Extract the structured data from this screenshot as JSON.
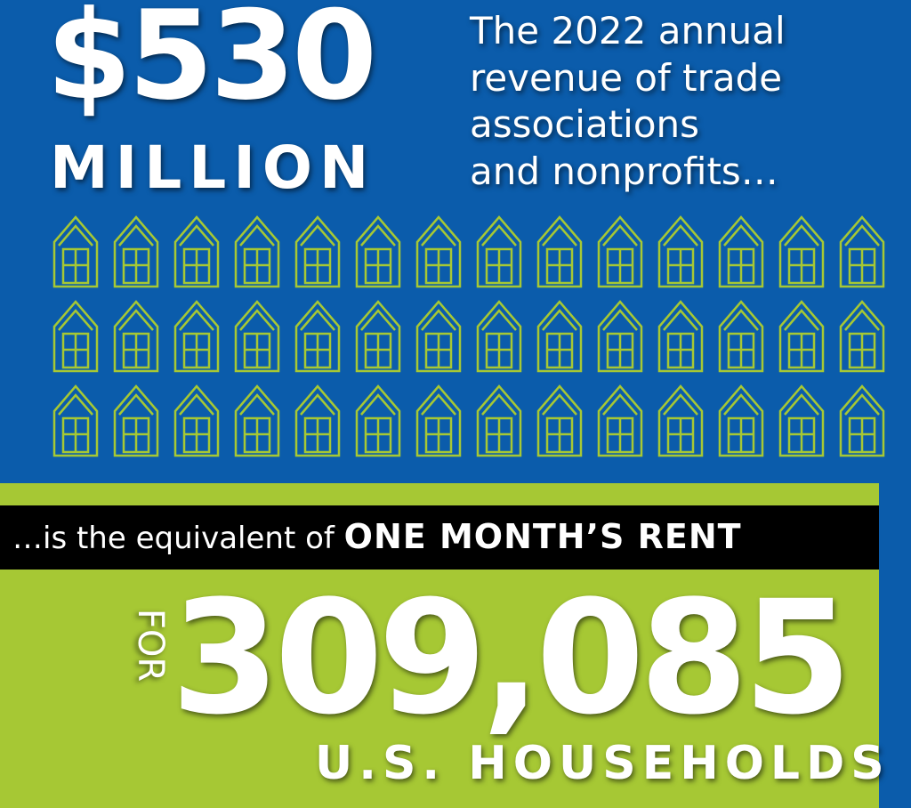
{
  "headline": {
    "amount": "$530",
    "unit": "MILLION"
  },
  "description": {
    "lines": [
      "The 2022 annual",
      "revenue of trade",
      "associations",
      "and nonprofits…"
    ]
  },
  "equivalent": {
    "lead": "…is the equivalent of",
    "emphasis": "ONE MONTH’S RENT"
  },
  "result": {
    "prefix": "FOR",
    "number": "309,085",
    "unit": "U.S. HOUSEHOLDS"
  }
}
